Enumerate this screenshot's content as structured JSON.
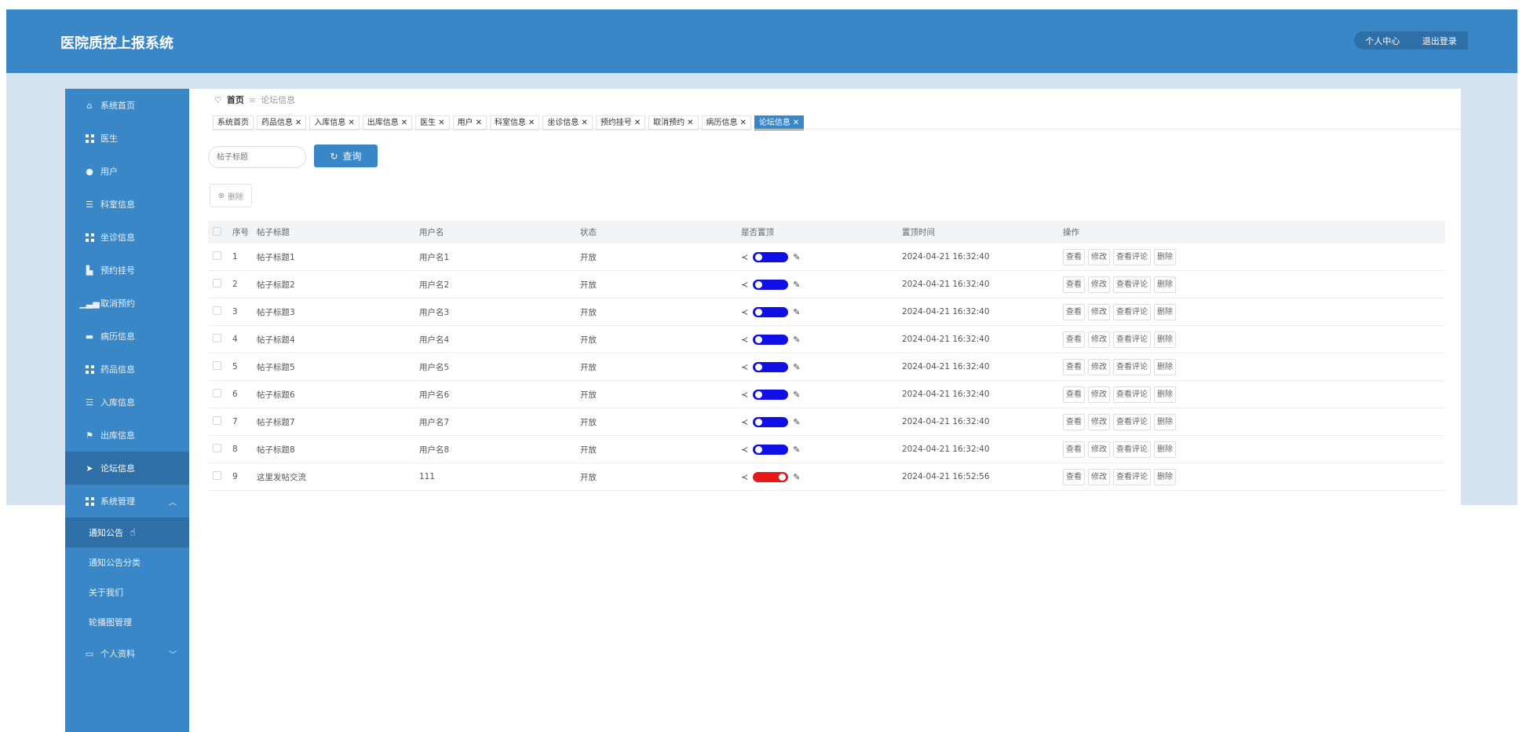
{
  "header": {
    "title": "医院质控上报系统",
    "actions": [
      "个人中心",
      "退出登录"
    ]
  },
  "sidebar": {
    "items": [
      {
        "label": "系统首页",
        "icon": "home-icon"
      },
      {
        "label": "医生",
        "icon": "grid-icon"
      },
      {
        "label": "用户",
        "icon": "pin-icon"
      },
      {
        "label": "科室信息",
        "icon": "list-icon"
      },
      {
        "label": "坐诊信息",
        "icon": "grid-icon"
      },
      {
        "label": "预约挂号",
        "icon": "chart-icon"
      },
      {
        "label": "取消预约",
        "icon": "bar-chart-icon"
      },
      {
        "label": "病历信息",
        "icon": "message-icon"
      },
      {
        "label": "药品信息",
        "icon": "grid-icon"
      },
      {
        "label": "入库信息",
        "icon": "sliders-icon"
      },
      {
        "label": "出库信息",
        "icon": "flag-icon"
      },
      {
        "label": "论坛信息",
        "icon": "send-icon"
      },
      {
        "label": "系统管理",
        "icon": "grid-icon"
      }
    ],
    "system_sub": [
      "通知公告",
      "通知公告分类",
      "关于我们",
      "轮播图管理"
    ],
    "profile": "个人资料"
  },
  "breadcrumb": {
    "home": "首页",
    "current": "论坛信息"
  },
  "tabs": [
    "系统首页",
    "药品信息",
    "入库信息",
    "出库信息",
    "医生",
    "用户",
    "科室信息",
    "坐诊信息",
    "预约挂号",
    "取消预约",
    "病历信息",
    "论坛信息"
  ],
  "search": {
    "placeholder": "帖子标题",
    "button": "查询"
  },
  "delete_label": "删除",
  "table": {
    "headers": [
      "序号",
      "帖子标题",
      "用户名",
      "状态",
      "是否置顶",
      "置顶时间",
      "操作"
    ],
    "rows": [
      {
        "no": "1",
        "title": "帖子标题1",
        "user": "用户名1",
        "status": "开放",
        "top": true,
        "time": "2024-04-21 16:32:40"
      },
      {
        "no": "2",
        "title": "帖子标题2",
        "user": "用户名2",
        "status": "开放",
        "top": true,
        "time": "2024-04-21 16:32:40"
      },
      {
        "no": "3",
        "title": "帖子标题3",
        "user": "用户名3",
        "status": "开放",
        "top": true,
        "time": "2024-04-21 16:32:40"
      },
      {
        "no": "4",
        "title": "帖子标题4",
        "user": "用户名4",
        "status": "开放",
        "top": true,
        "time": "2024-04-21 16:32:40"
      },
      {
        "no": "5",
        "title": "帖子标题5",
        "user": "用户名5",
        "status": "开放",
        "top": true,
        "time": "2024-04-21 16:32:40"
      },
      {
        "no": "6",
        "title": "帖子标题6",
        "user": "用户名6",
        "status": "开放",
        "top": true,
        "time": "2024-04-21 16:32:40"
      },
      {
        "no": "7",
        "title": "帖子标题7",
        "user": "用户名7",
        "status": "开放",
        "top": true,
        "time": "2024-04-21 16:32:40"
      },
      {
        "no": "8",
        "title": "帖子标题8",
        "user": "用户名8",
        "status": "开放",
        "top": true,
        "time": "2024-04-21 16:32:40"
      },
      {
        "no": "9",
        "title": "这里发帖交流",
        "user": "111",
        "status": "开放",
        "top": false,
        "time": "2024-04-21 16:52:56"
      }
    ],
    "ops": [
      "查看",
      "修改",
      "查看评论",
      "删除"
    ]
  },
  "colors": {
    "primary": "#3a87c8",
    "toggle_on": "#1010e6",
    "toggle_off": "#e81818"
  }
}
